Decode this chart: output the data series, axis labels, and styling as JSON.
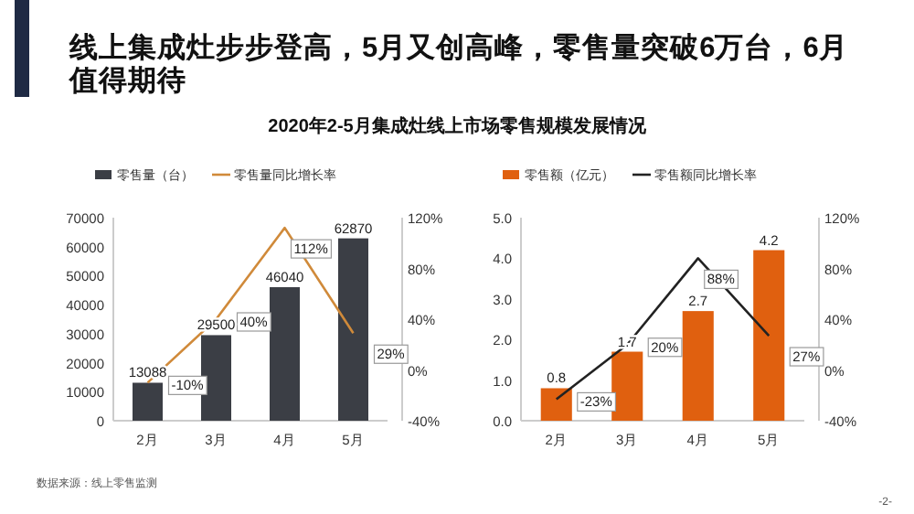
{
  "chart_data": [
    {
      "type": "bar",
      "title": "线上集成灶步步登高，5月又创高峰，零售量突破6万台，6月值得期待",
      "subtitle": "2020年2-5月集成灶线上市场零售规模发展情况",
      "categories": [
        "2月",
        "3月",
        "4月",
        "5月"
      ],
      "series": [
        {
          "name": "零售量（台）",
          "type": "bar",
          "color": "#3b3e45",
          "values": [
            13088,
            29500,
            46040,
            62870
          ],
          "value_labels": [
            "13088",
            "29500",
            "46040",
            "62870"
          ]
        },
        {
          "name": "零售量同比增长率",
          "type": "line",
          "axis": "y2",
          "color": "#d08a3a",
          "values": [
            -10,
            40,
            112,
            29
          ],
          "value_labels": [
            "-10%",
            "40%",
            "112%",
            "29%"
          ]
        }
      ],
      "ylim": [
        0,
        70000
      ],
      "yticks": [
        0,
        10000,
        20000,
        30000,
        40000,
        50000,
        60000,
        70000
      ],
      "y2lim": [
        -40,
        120
      ],
      "y2ticks": [
        {
          "value": -40,
          "label": "-40%"
        },
        {
          "value": 0,
          "label": "0%"
        },
        {
          "value": 40,
          "label": "40%"
        },
        {
          "value": 80,
          "label": "80%"
        },
        {
          "value": 120,
          "label": "120%"
        }
      ],
      "legend": "top",
      "grid": false,
      "annotations": [
        "数据来源：线上零售监测"
      ]
    },
    {
      "type": "bar",
      "categories": [
        "2月",
        "3月",
        "4月",
        "5月"
      ],
      "series": [
        {
          "name": "零售额（亿元）",
          "type": "bar",
          "color": "#e0600f",
          "values": [
            0.8,
            1.7,
            2.7,
            4.2
          ],
          "value_labels": [
            "0.8",
            "1.7",
            "2.7",
            "4.2"
          ]
        },
        {
          "name": "零售额同比增长率",
          "type": "line",
          "axis": "y2",
          "color": "#222222",
          "values": [
            -23,
            20,
            88,
            27
          ],
          "value_labels": [
            "-23%",
            "20%",
            "88%",
            "27%"
          ]
        }
      ],
      "ylim": [
        0,
        5
      ],
      "yticks": [
        {
          "value": 0,
          "label": "0.0"
        },
        {
          "value": 1,
          "label": "1.0"
        },
        {
          "value": 2,
          "label": "2.0"
        },
        {
          "value": 3,
          "label": "3.0"
        },
        {
          "value": 4,
          "label": "4.0"
        },
        {
          "value": 5,
          "label": "5.0"
        }
      ],
      "y2lim": [
        -40,
        120
      ],
      "y2ticks": [
        {
          "value": -40,
          "label": "-40%"
        },
        {
          "value": 0,
          "label": "0%"
        },
        {
          "value": 40,
          "label": "40%"
        },
        {
          "value": 80,
          "label": "80%"
        },
        {
          "value": 120,
          "label": "120%"
        }
      ],
      "legend": "top",
      "grid": false,
      "annotations": [
        "-2-"
      ]
    }
  ]
}
